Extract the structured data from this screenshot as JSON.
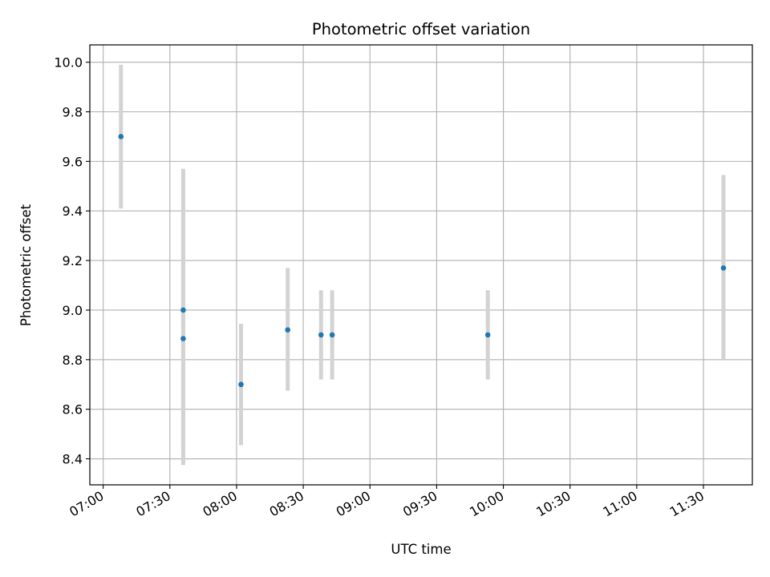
{
  "chart_data": {
    "type": "scatter",
    "title": "Photometric offset variation",
    "xlabel": "UTC time",
    "ylabel": "Photometric offset",
    "x_ticks": [
      "07:00",
      "07:30",
      "08:00",
      "08:30",
      "09:00",
      "09:30",
      "10:00",
      "10:30",
      "11:00",
      "11:30"
    ],
    "y_ticks": [
      "8.4",
      "8.6",
      "8.8",
      "9.0",
      "9.2",
      "9.4",
      "9.6",
      "9.8",
      "10.0"
    ],
    "xlim": [
      "06:54",
      "11:52"
    ],
    "ylim": [
      8.295,
      10.07
    ],
    "grid": true,
    "points": [
      {
        "x": "07:08",
        "y": 9.7,
        "y_low": 9.41,
        "y_high": 9.99
      },
      {
        "x": "07:36",
        "y": 9.0,
        "y_low": 8.44,
        "y_high": 9.57
      },
      {
        "x": "07:36",
        "y": 8.885,
        "y_low": 8.375,
        "y_high": 9.4
      },
      {
        "x": "08:02",
        "y": 8.7,
        "y_low": 8.455,
        "y_high": 8.945
      },
      {
        "x": "08:23",
        "y": 8.92,
        "y_low": 8.675,
        "y_high": 9.17
      },
      {
        "x": "08:38",
        "y": 8.9,
        "y_low": 8.72,
        "y_high": 9.08
      },
      {
        "x": "08:43",
        "y": 8.9,
        "y_low": 8.72,
        "y_high": 9.08
      },
      {
        "x": "09:53",
        "y": 8.9,
        "y_low": 8.72,
        "y_high": 9.08
      },
      {
        "x": "11:39",
        "y": 9.17,
        "y_low": 8.8,
        "y_high": 9.545
      }
    ],
    "colors": {
      "point": "#1f77b4",
      "errorbar": "#d3d3d3",
      "grid": "#b0b0b0"
    }
  }
}
